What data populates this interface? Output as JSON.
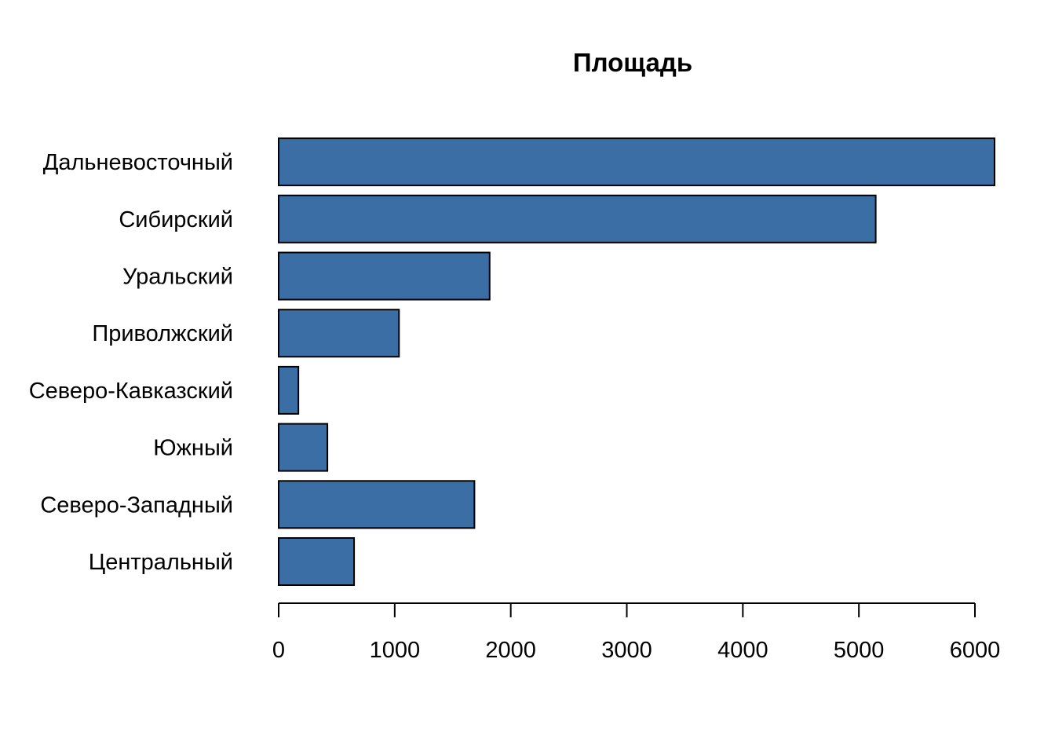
{
  "chart_data": {
    "type": "bar",
    "orientation": "horizontal",
    "title": "Площадь",
    "xlabel": "",
    "ylabel": "",
    "categories": [
      "Центральный",
      "Северо-Западный",
      "Южный",
      "Северо-Кавказский",
      "Приволжский",
      "Уральский",
      "Сибирский",
      "Дальневосточный"
    ],
    "values": [
      650,
      1687,
      420,
      170,
      1037,
      1818,
      5145,
      6169
    ],
    "xlim": [
      0,
      6000
    ],
    "xticks": [
      0,
      1000,
      2000,
      3000,
      4000,
      5000,
      6000
    ],
    "grid": false,
    "bar_color": "#3A6EA5",
    "legend": "none"
  }
}
